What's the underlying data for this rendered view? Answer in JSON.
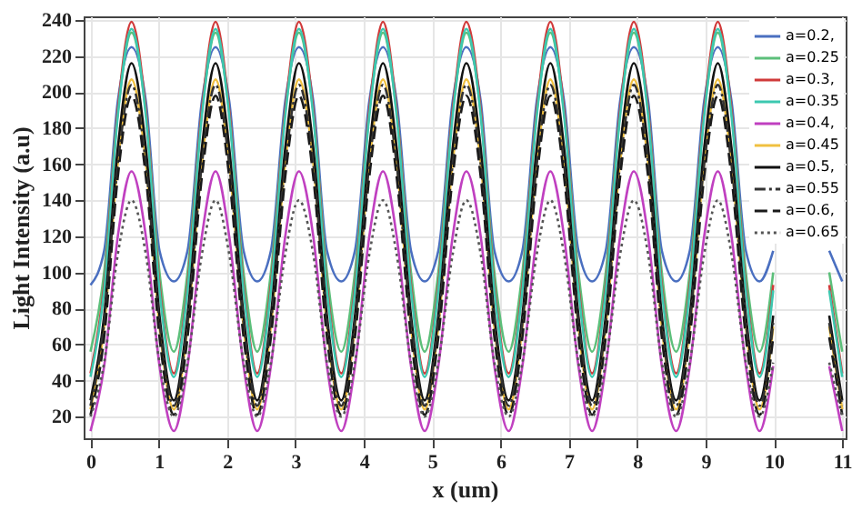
{
  "chart_data": {
    "type": "line",
    "xlabel": "x (um)",
    "ylabel": "Light Intensity (a.u)",
    "x": [
      0.0,
      0.2,
      0.4,
      0.6,
      0.81,
      1.01,
      1.22,
      1.42,
      1.63,
      1.83,
      2.03,
      2.24,
      2.44,
      2.64,
      2.85,
      3.05,
      3.26,
      3.46,
      3.67,
      3.87,
      4.08,
      4.28,
      4.48,
      4.69,
      4.89,
      5.09,
      5.3,
      5.5,
      5.71,
      5.91,
      6.12,
      6.32,
      6.53,
      6.73,
      6.93,
      7.14,
      7.34,
      7.54,
      7.75,
      7.95,
      8.16,
      8.36,
      8.57,
      8.77,
      8.98,
      9.18,
      9.38,
      9.59,
      9.79,
      9.99,
      10.2,
      10.4,
      10.61,
      10.81,
      11.0
    ],
    "series": [
      {
        "name": "a=0.2,",
        "color": "#4a6fc0",
        "line_style": "solid",
        "values": [
          93,
          112,
          195,
          225,
          195,
          112,
          95,
          112,
          195,
          225,
          195,
          112,
          95,
          112,
          195,
          225,
          195,
          112,
          95,
          112,
          195,
          225,
          195,
          112,
          95,
          112,
          195,
          225,
          195,
          112,
          95,
          112,
          195,
          225,
          195,
          112,
          95,
          112,
          195,
          225,
          195,
          112,
          95,
          112,
          195,
          225,
          195,
          112,
          95,
          112,
          null,
          null,
          null,
          112,
          95
        ]
      },
      {
        "name": "a=0.25",
        "color": "#5cbf7a",
        "line_style": "solid",
        "values": [
          56,
          100,
          189,
          233,
          189,
          100,
          56,
          100,
          189,
          233,
          189,
          100,
          56,
          100,
          189,
          233,
          189,
          100,
          56,
          100,
          189,
          233,
          189,
          100,
          56,
          100,
          189,
          233,
          189,
          100,
          56,
          100,
          189,
          233,
          189,
          100,
          56,
          100,
          189,
          233,
          189,
          100,
          56,
          100,
          189,
          233,
          189,
          100,
          56,
          100,
          null,
          null,
          null,
          100,
          56
        ]
      },
      {
        "name": "a=0.3,",
        "color": "#d03a3a",
        "line_style": "solid",
        "values": [
          44,
          93,
          190,
          239,
          190,
          93,
          44,
          93,
          190,
          239,
          190,
          93,
          44,
          93,
          190,
          239,
          190,
          93,
          44,
          93,
          190,
          239,
          190,
          93,
          44,
          93,
          190,
          239,
          190,
          93,
          44,
          93,
          190,
          239,
          190,
          93,
          44,
          93,
          190,
          239,
          190,
          93,
          44,
          93,
          190,
          239,
          190,
          93,
          44,
          93,
          null,
          null,
          null,
          93,
          44
        ]
      },
      {
        "name": "a=0.35",
        "color": "#3cc8b0",
        "line_style": "solid",
        "values": [
          42,
          90,
          187,
          235,
          187,
          90,
          42,
          90,
          187,
          235,
          187,
          90,
          42,
          90,
          187,
          235,
          187,
          90,
          42,
          90,
          187,
          235,
          187,
          90,
          42,
          90,
          187,
          235,
          187,
          90,
          42,
          90,
          187,
          235,
          187,
          90,
          42,
          90,
          187,
          235,
          187,
          90,
          42,
          90,
          187,
          235,
          187,
          90,
          42,
          90,
          null,
          null,
          null,
          90,
          42
        ]
      },
      {
        "name": "a=0.4,",
        "color": "#c040c0",
        "line_style": "solid",
        "values": [
          12,
          48,
          120,
          156,
          120,
          48,
          12,
          48,
          120,
          156,
          120,
          48,
          12,
          48,
          120,
          156,
          120,
          48,
          12,
          48,
          120,
          156,
          120,
          48,
          12,
          48,
          120,
          156,
          120,
          48,
          12,
          48,
          120,
          156,
          120,
          48,
          12,
          48,
          120,
          156,
          120,
          48,
          12,
          48,
          120,
          156,
          120,
          48,
          12,
          48,
          null,
          null,
          null,
          48,
          12
        ]
      },
      {
        "name": "a=0.45",
        "color": "#f0c040",
        "line_style": "solid",
        "values": [
          24,
          70,
          161,
          207,
          161,
          70,
          24,
          70,
          161,
          207,
          161,
          70,
          24,
          70,
          161,
          207,
          161,
          70,
          24,
          70,
          161,
          207,
          161,
          70,
          24,
          70,
          161,
          207,
          161,
          70,
          24,
          70,
          161,
          207,
          161,
          70,
          24,
          70,
          161,
          207,
          161,
          70,
          24,
          70,
          161,
          207,
          161,
          70,
          24,
          70,
          null,
          null,
          null,
          70,
          24
        ]
      },
      {
        "name": "a=0.5,",
        "color": "#111111",
        "line_style": "solid",
        "values": [
          29,
          76,
          169,
          216,
          169,
          76,
          29,
          76,
          169,
          216,
          169,
          76,
          29,
          76,
          169,
          216,
          169,
          76,
          29,
          76,
          169,
          216,
          169,
          76,
          29,
          76,
          169,
          216,
          169,
          76,
          29,
          76,
          169,
          216,
          169,
          76,
          29,
          76,
          169,
          216,
          169,
          76,
          29,
          76,
          169,
          216,
          169,
          76,
          29,
          76,
          null,
          null,
          null,
          76,
          29
        ]
      },
      {
        "name": "a=0.55",
        "color": "#333333",
        "line_style": "dashdot",
        "values": [
          26,
          72,
          160,
          204,
          160,
          72,
          26,
          72,
          160,
          204,
          160,
          72,
          26,
          72,
          160,
          204,
          160,
          72,
          26,
          72,
          160,
          204,
          160,
          72,
          26,
          72,
          160,
          204,
          160,
          72,
          26,
          72,
          160,
          204,
          160,
          72,
          26,
          72,
          160,
          204,
          160,
          72,
          26,
          72,
          160,
          204,
          160,
          72,
          26,
          72,
          null,
          null,
          null,
          72,
          26
        ]
      },
      {
        "name": "a=0.6,",
        "color": "#1a1a1a",
        "line_style": "dashed",
        "values": [
          21,
          64,
          153,
          198,
          153,
          64,
          21,
          64,
          153,
          198,
          153,
          64,
          21,
          64,
          153,
          198,
          153,
          64,
          21,
          64,
          153,
          198,
          153,
          64,
          21,
          64,
          153,
          198,
          153,
          64,
          21,
          64,
          153,
          198,
          153,
          64,
          21,
          64,
          153,
          198,
          153,
          64,
          21,
          64,
          153,
          198,
          153,
          64,
          21,
          64,
          null,
          null,
          null,
          64,
          21
        ]
      },
      {
        "name": "a=0.65",
        "color": "#555555",
        "line_style": "dotted",
        "values": [
          20,
          50,
          110,
          140,
          110,
          50,
          20,
          50,
          110,
          140,
          110,
          50,
          20,
          50,
          110,
          140,
          110,
          50,
          20,
          50,
          110,
          140,
          110,
          50,
          20,
          50,
          110,
          140,
          110,
          50,
          20,
          50,
          110,
          140,
          110,
          50,
          20,
          50,
          110,
          140,
          110,
          50,
          20,
          50,
          110,
          140,
          110,
          50,
          20,
          50,
          null,
          null,
          null,
          50,
          20
        ]
      }
    ],
    "xlim": [
      -0.1,
      11.05
    ],
    "xticks": [
      0,
      1,
      2,
      3,
      4,
      5,
      6,
      7,
      8,
      9,
      10,
      11
    ],
    "ylim": [
      8,
      242
    ],
    "yticks": [
      20,
      40,
      60,
      80,
      100,
      120,
      140,
      160,
      180,
      200,
      220,
      240
    ],
    "grid": true,
    "legend": "top right"
  }
}
